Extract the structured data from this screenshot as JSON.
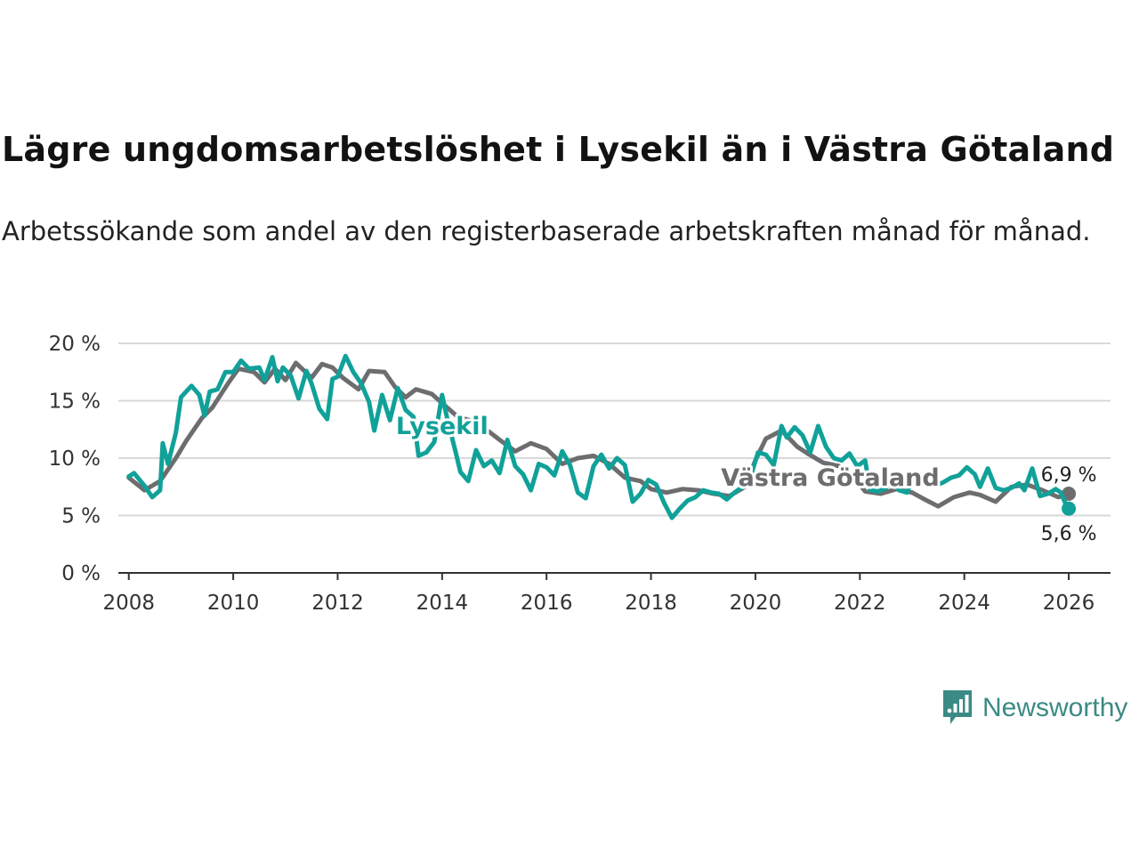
{
  "title": "Lägre ungdomsarbetslöshet i Lysekil än i Västra Götaland",
  "subtitle": "Arbetssökande som andel av den registerbaserade arbetskraften månad för månad.",
  "brand": {
    "name": "Newsworthy",
    "color": "#3b8a85"
  },
  "chart_data": {
    "type": "line",
    "title": "Lägre ungdomsarbetslöshet i Lysekil än i Västra Götaland",
    "xlabel": "",
    "ylabel": "",
    "xlim": [
      2007.8,
      2026.8
    ],
    "ylim": [
      0,
      20
    ],
    "grid": true,
    "x_ticks": [
      "2008",
      "2010",
      "2012",
      "2014",
      "2016",
      "2018",
      "2020",
      "2022",
      "2024",
      "2026"
    ],
    "y_ticks": [
      "0 %",
      "5 %",
      "10 %",
      "15 %",
      "20 %"
    ],
    "series": [
      {
        "name": "Västra Götaland",
        "color": "#6d6d70",
        "end_label": "6,9 %",
        "points": [
          [
            2008.0,
            8.3
          ],
          [
            2008.3,
            7.2
          ],
          [
            2008.6,
            8.0
          ],
          [
            2008.9,
            10.0
          ],
          [
            2009.1,
            11.5
          ],
          [
            2009.4,
            13.5
          ],
          [
            2009.6,
            14.4
          ],
          [
            2009.9,
            16.5
          ],
          [
            2010.1,
            17.8
          ],
          [
            2010.4,
            17.5
          ],
          [
            2010.6,
            16.6
          ],
          [
            2010.8,
            17.8
          ],
          [
            2011.0,
            16.8
          ],
          [
            2011.2,
            18.3
          ],
          [
            2011.5,
            17.0
          ],
          [
            2011.7,
            18.2
          ],
          [
            2011.9,
            17.9
          ],
          [
            2012.1,
            17.0
          ],
          [
            2012.4,
            16.0
          ],
          [
            2012.6,
            17.6
          ],
          [
            2012.9,
            17.5
          ],
          [
            2013.1,
            16.2
          ],
          [
            2013.3,
            15.3
          ],
          [
            2013.5,
            16.0
          ],
          [
            2013.8,
            15.6
          ],
          [
            2014.0,
            14.8
          ],
          [
            2014.3,
            13.6
          ],
          [
            2014.6,
            13.2
          ],
          [
            2014.9,
            12.3
          ],
          [
            2015.1,
            11.6
          ],
          [
            2015.4,
            10.6
          ],
          [
            2015.7,
            11.3
          ],
          [
            2016.0,
            10.8
          ],
          [
            2016.3,
            9.5
          ],
          [
            2016.6,
            10.0
          ],
          [
            2016.9,
            10.2
          ],
          [
            2017.2,
            9.5
          ],
          [
            2017.5,
            8.3
          ],
          [
            2017.8,
            8.0
          ],
          [
            2018.0,
            7.3
          ],
          [
            2018.3,
            7.0
          ],
          [
            2018.6,
            7.3
          ],
          [
            2018.9,
            7.2
          ],
          [
            2019.2,
            6.9
          ],
          [
            2019.5,
            6.7
          ],
          [
            2019.8,
            7.5
          ],
          [
            2020.0,
            9.8
          ],
          [
            2020.2,
            11.7
          ],
          [
            2020.5,
            12.4
          ],
          [
            2020.8,
            11.0
          ],
          [
            2021.0,
            10.4
          ],
          [
            2021.3,
            9.6
          ],
          [
            2021.6,
            9.3
          ],
          [
            2021.9,
            8.3
          ],
          [
            2022.1,
            7.1
          ],
          [
            2022.4,
            6.9
          ],
          [
            2022.7,
            7.3
          ],
          [
            2023.0,
            7.0
          ],
          [
            2023.2,
            6.5
          ],
          [
            2023.5,
            5.8
          ],
          [
            2023.8,
            6.6
          ],
          [
            2024.1,
            7.0
          ],
          [
            2024.3,
            6.8
          ],
          [
            2024.6,
            6.2
          ],
          [
            2024.9,
            7.5
          ],
          [
            2025.2,
            7.7
          ],
          [
            2025.5,
            7.2
          ],
          [
            2025.8,
            6.6
          ],
          [
            2026.0,
            6.9
          ]
        ]
      },
      {
        "name": "Lysekil",
        "color": "#10a199",
        "end_label": "5,6 %",
        "points": [
          [
            2008.0,
            8.4
          ],
          [
            2008.1,
            8.7
          ],
          [
            2008.3,
            7.6
          ],
          [
            2008.45,
            6.6
          ],
          [
            2008.6,
            7.2
          ],
          [
            2008.65,
            11.3
          ],
          [
            2008.75,
            9.5
          ],
          [
            2008.9,
            12.2
          ],
          [
            2009.0,
            15.3
          ],
          [
            2009.2,
            16.3
          ],
          [
            2009.35,
            15.5
          ],
          [
            2009.45,
            13.7
          ],
          [
            2009.55,
            15.8
          ],
          [
            2009.7,
            16.0
          ],
          [
            2009.85,
            17.5
          ],
          [
            2010.0,
            17.5
          ],
          [
            2010.15,
            18.5
          ],
          [
            2010.3,
            17.8
          ],
          [
            2010.5,
            17.9
          ],
          [
            2010.6,
            16.8
          ],
          [
            2010.75,
            18.8
          ],
          [
            2010.85,
            16.7
          ],
          [
            2010.95,
            17.9
          ],
          [
            2011.1,
            17.2
          ],
          [
            2011.25,
            15.2
          ],
          [
            2011.4,
            17.6
          ],
          [
            2011.5,
            16.5
          ],
          [
            2011.65,
            14.3
          ],
          [
            2011.8,
            13.4
          ],
          [
            2011.9,
            16.9
          ],
          [
            2012.0,
            17.1
          ],
          [
            2012.15,
            18.9
          ],
          [
            2012.3,
            17.5
          ],
          [
            2012.45,
            16.5
          ],
          [
            2012.6,
            14.9
          ],
          [
            2012.7,
            12.4
          ],
          [
            2012.85,
            15.5
          ],
          [
            2013.0,
            13.3
          ],
          [
            2013.15,
            16.1
          ],
          [
            2013.3,
            14.2
          ],
          [
            2013.45,
            13.6
          ],
          [
            2013.55,
            10.2
          ],
          [
            2013.7,
            10.5
          ],
          [
            2013.85,
            11.4
          ],
          [
            2014.0,
            15.5
          ],
          [
            2014.1,
            13.4
          ],
          [
            2014.25,
            10.7
          ],
          [
            2014.35,
            8.8
          ],
          [
            2014.5,
            8.0
          ],
          [
            2014.65,
            10.7
          ],
          [
            2014.8,
            9.3
          ],
          [
            2014.95,
            9.8
          ],
          [
            2015.1,
            8.7
          ],
          [
            2015.25,
            11.6
          ],
          [
            2015.4,
            9.3
          ],
          [
            2015.55,
            8.6
          ],
          [
            2015.7,
            7.2
          ],
          [
            2015.85,
            9.5
          ],
          [
            2016.0,
            9.2
          ],
          [
            2016.15,
            8.5
          ],
          [
            2016.3,
            10.6
          ],
          [
            2016.45,
            9.4
          ],
          [
            2016.6,
            7.0
          ],
          [
            2016.75,
            6.5
          ],
          [
            2016.9,
            9.3
          ],
          [
            2017.05,
            10.3
          ],
          [
            2017.2,
            9.1
          ],
          [
            2017.35,
            10.0
          ],
          [
            2017.5,
            9.4
          ],
          [
            2017.65,
            6.2
          ],
          [
            2017.8,
            6.9
          ],
          [
            2017.95,
            8.1
          ],
          [
            2018.1,
            7.7
          ],
          [
            2018.25,
            6.1
          ],
          [
            2018.4,
            4.8
          ],
          [
            2018.55,
            5.6
          ],
          [
            2018.7,
            6.3
          ],
          [
            2018.85,
            6.6
          ],
          [
            2019.0,
            7.2
          ],
          [
            2019.15,
            7.0
          ],
          [
            2019.3,
            6.9
          ],
          [
            2019.45,
            6.4
          ],
          [
            2019.6,
            7.0
          ],
          [
            2019.75,
            7.5
          ],
          [
            2019.9,
            8.3
          ],
          [
            2020.05,
            10.5
          ],
          [
            2020.2,
            10.3
          ],
          [
            2020.35,
            9.4
          ],
          [
            2020.5,
            12.8
          ],
          [
            2020.6,
            11.8
          ],
          [
            2020.75,
            12.7
          ],
          [
            2020.9,
            12.0
          ],
          [
            2021.05,
            10.5
          ],
          [
            2021.2,
            12.8
          ],
          [
            2021.35,
            11.0
          ],
          [
            2021.5,
            10.0
          ],
          [
            2021.65,
            9.8
          ],
          [
            2021.8,
            10.4
          ],
          [
            2021.95,
            9.3
          ],
          [
            2022.1,
            9.8
          ],
          [
            2022.2,
            7.2
          ],
          [
            2022.35,
            7.1
          ],
          [
            2022.5,
            7.4
          ],
          [
            2022.6,
            8.1
          ],
          [
            2022.75,
            7.2
          ],
          [
            2022.9,
            7.0
          ],
          [
            2023.0,
            8.0
          ],
          [
            2023.15,
            7.7
          ],
          [
            2023.3,
            7.8
          ],
          [
            2023.45,
            7.6
          ],
          [
            2023.6,
            7.9
          ],
          [
            2023.75,
            8.3
          ],
          [
            2023.9,
            8.5
          ],
          [
            2024.05,
            9.2
          ],
          [
            2024.2,
            8.6
          ],
          [
            2024.3,
            7.5
          ],
          [
            2024.45,
            9.1
          ],
          [
            2024.6,
            7.4
          ],
          [
            2024.75,
            7.2
          ],
          [
            2024.9,
            7.4
          ],
          [
            2025.05,
            7.8
          ],
          [
            2025.15,
            7.2
          ],
          [
            2025.3,
            9.1
          ],
          [
            2025.45,
            6.7
          ],
          [
            2025.6,
            6.9
          ],
          [
            2025.75,
            7.3
          ],
          [
            2025.85,
            7.0
          ],
          [
            2025.95,
            5.9
          ],
          [
            2026.0,
            5.6
          ]
        ]
      }
    ],
    "annotations": [
      {
        "text": "Lysekil",
        "series": "Lysekil",
        "x": 2014.0,
        "y": 12.8
      },
      {
        "text": "Västra Götaland",
        "series": "Västra Götaland",
        "x": 2019.0,
        "y": 8.3
      }
    ]
  }
}
